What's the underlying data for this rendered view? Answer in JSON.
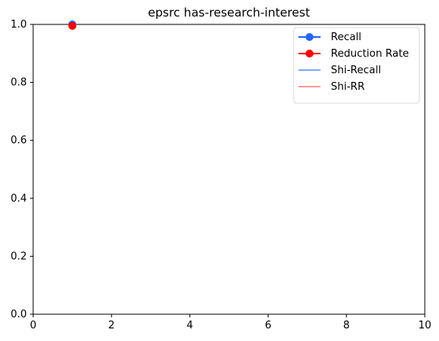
{
  "chart_data": {
    "type": "line",
    "title": "epsrc has-research-interest",
    "xlabel": "",
    "ylabel": "",
    "xlim": [
      0,
      10
    ],
    "ylim": [
      0.0,
      1.0
    ],
    "x_ticks": [
      "0",
      "2",
      "4",
      "6",
      "8",
      "10"
    ],
    "y_ticks": [
      "0.0",
      "0.2",
      "0.4",
      "0.6",
      "0.8",
      "1.0"
    ],
    "grid": false,
    "legend_position": "top-right",
    "series": [
      {
        "name": "Recall",
        "color": "#1f66ff",
        "marker": "circle",
        "style": "solid",
        "x": [
          1
        ],
        "y": [
          1.0
        ]
      },
      {
        "name": "Reduction Rate",
        "color": "#ff0000",
        "marker": "circle",
        "style": "solid",
        "x": [
          1
        ],
        "y": [
          0.995
        ]
      },
      {
        "name": "Shi-Recall",
        "color": "#7fa8ff",
        "marker": "none",
        "style": "solid",
        "x": [],
        "y": []
      },
      {
        "name": "Shi-RR",
        "color": "#ff9a9a",
        "marker": "none",
        "style": "solid",
        "x": [],
        "y": []
      }
    ]
  }
}
